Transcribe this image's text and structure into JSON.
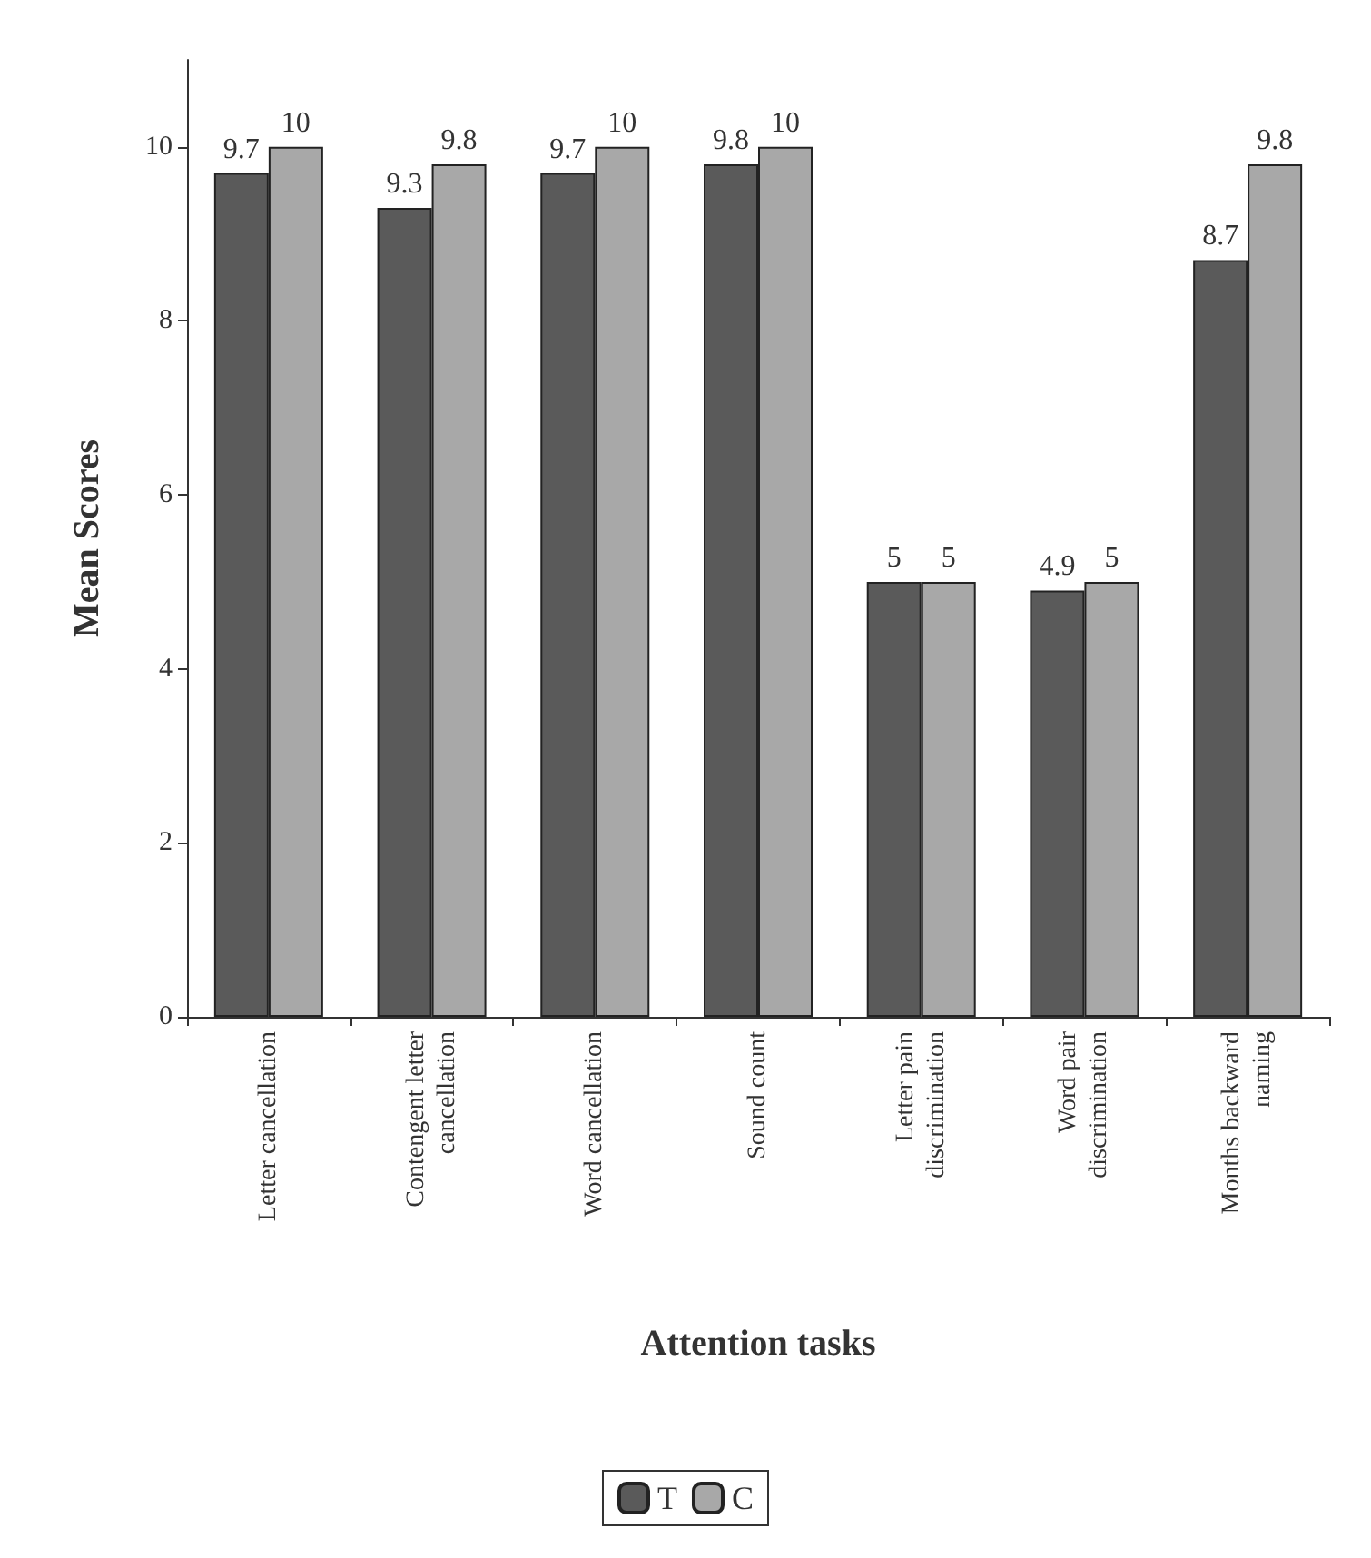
{
  "chart_data": {
    "type": "bar",
    "xlabel": "Attention tasks",
    "ylabel": "Mean Scores",
    "categories": [
      "Letter cancellation",
      "Contengent letter\ncancellation",
      "Word cancellation",
      "Sound count",
      "Letter pain\ndiscrimination",
      "Word pair\ndiscrimination",
      "Months backward\nnaming"
    ],
    "series": [
      {
        "name": "T",
        "color": "#5a5a5a",
        "values": [
          9.7,
          9.3,
          9.7,
          9.8,
          5,
          4.9,
          8.7
        ]
      },
      {
        "name": "C",
        "color": "#a8a8a8",
        "values": [
          10,
          9.8,
          10,
          10,
          5,
          5,
          9.8
        ]
      }
    ],
    "ylim": [
      0,
      11
    ],
    "yticks": [
      0,
      2,
      4,
      6,
      8,
      10
    ],
    "grid": false,
    "legend": "bottom",
    "data_labels": true
  }
}
